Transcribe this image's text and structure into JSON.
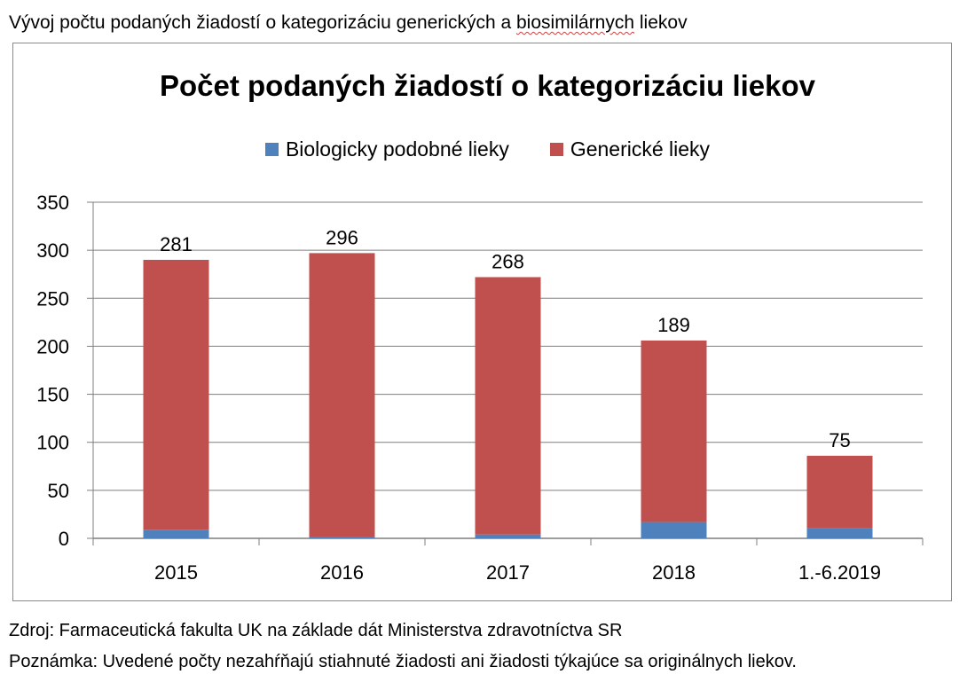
{
  "document": {
    "heading_prefix": "Vývoj počtu podaných žiadostí o kategorizáciu generických a ",
    "heading_underlined": "biosimilárnych",
    "heading_suffix": " liekov",
    "source": "Zdroj: Farmaceutická fakulta UK na základe dát Ministerstva zdravotníctva SR",
    "note": "Poznámka: Uvedené počty nezahŕňajú stiahnuté žiadosti ani žiadosti týkajúce sa originálnych liekov."
  },
  "chart_data": {
    "type": "bar",
    "stacked": true,
    "title": "Počet podaných žiadostí o kategorizáciu liekov",
    "categories": [
      "2015",
      "2016",
      "2017",
      "2018",
      "1.-6.2019"
    ],
    "series": [
      {
        "name": "Biologicky podobné lieky",
        "values": [
          9,
          1,
          4,
          17,
          11
        ],
        "color": "#4f81bd"
      },
      {
        "name": "Generické lieky",
        "values": [
          281,
          296,
          268,
          189,
          75
        ],
        "color": "#c0504d"
      }
    ],
    "ylim": [
      0,
      350
    ],
    "yticks": [
      0,
      50,
      100,
      150,
      200,
      250,
      300,
      350
    ],
    "grid": true,
    "legend": "top",
    "xlabel": "",
    "ylabel": ""
  }
}
